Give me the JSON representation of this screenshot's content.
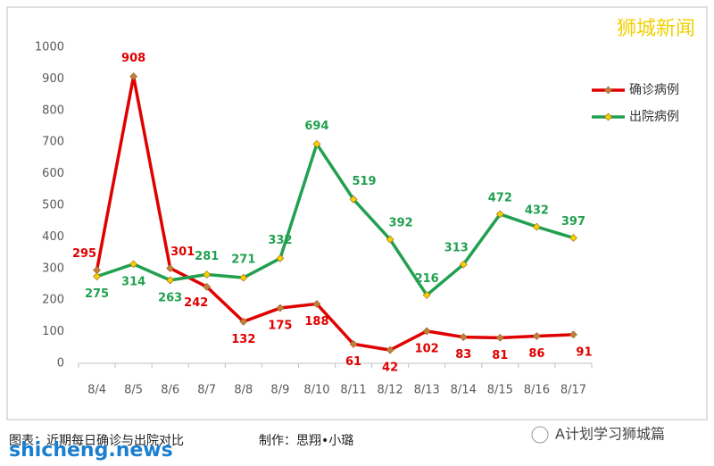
{
  "chart_data": {
    "type": "line",
    "categories": [
      "8/4",
      "8/5",
      "8/6",
      "8/7",
      "8/8",
      "8/9",
      "8/10",
      "8/11",
      "8/12",
      "8/13",
      "8/14",
      "8/15",
      "8/16",
      "8/17"
    ],
    "series": [
      {
        "name": "确诊病例",
        "color": "#e00000",
        "marker_color": "#c08040",
        "values": [
          295,
          908,
          301,
          242,
          132,
          175,
          188,
          61,
          42,
          102,
          83,
          81,
          86,
          91
        ]
      },
      {
        "name": "出院病例",
        "color": "#22a050",
        "marker_color": "#f5d000",
        "values": [
          275,
          314,
          263,
          281,
          271,
          332,
          694,
          519,
          392,
          216,
          313,
          472,
          432,
          397
        ]
      }
    ],
    "ylim": [
      0,
      1000
    ],
    "yticks": [
      0,
      100,
      200,
      300,
      400,
      500,
      600,
      700,
      800,
      900,
      1000
    ],
    "grid": false,
    "legend": "right"
  },
  "watermark": "狮城新闻",
  "footer": {
    "caption": "图表：近期每日确诊与出院对比",
    "credit": "制作：思翔•小璐",
    "source": "A计划学习狮城篇",
    "site": "shicheng.news"
  }
}
